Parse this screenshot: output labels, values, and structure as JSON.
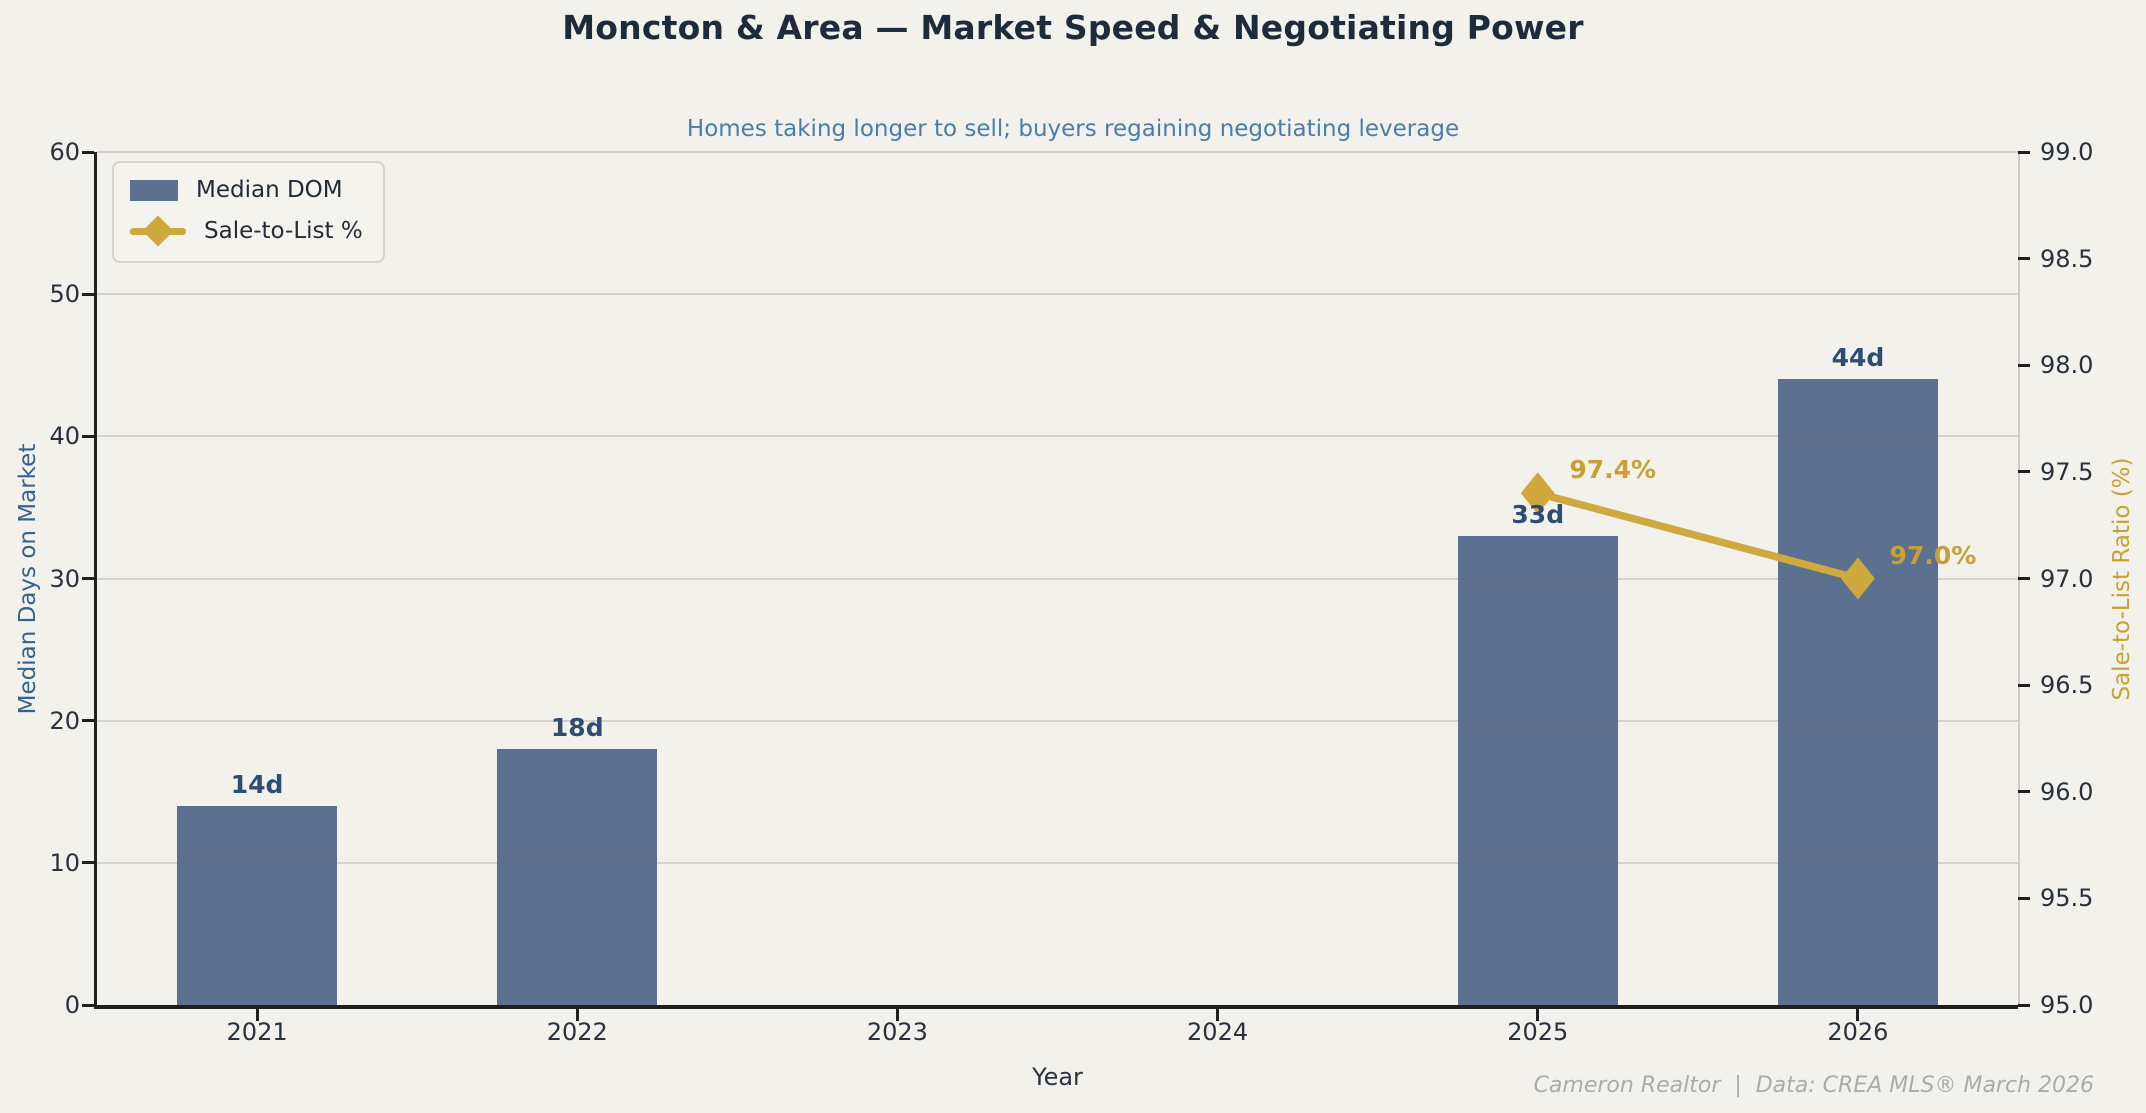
{
  "chart_data": {
    "type": "bar+line-combo",
    "title": "Moncton & Area — Market Speed & Negotiating Power",
    "subtitle": "Homes taking longer to sell; buyers regaining negotiating leverage",
    "xlabel": "Year",
    "categories": [
      "2021",
      "2022",
      "2023",
      "2024",
      "2025",
      "2026"
    ],
    "left_axis": {
      "label": "Median Days on Market",
      "lim": [
        0,
        60
      ],
      "ticks": [
        "0",
        "10",
        "20",
        "30",
        "40",
        "50",
        "60"
      ]
    },
    "right_axis": {
      "label": "Sale-to-List Ratio (%)",
      "lim": [
        95.0,
        99.0
      ],
      "ticks": [
        "95.0",
        "95.5",
        "96.0",
        "96.5",
        "97.0",
        "97.5",
        "98.0",
        "98.5",
        "99.0"
      ]
    },
    "series": [
      {
        "name": "Median DOM",
        "type": "bar",
        "axis": "left",
        "color": "#5c7190",
        "values": [
          14,
          18,
          null,
          null,
          33,
          44
        ],
        "point_labels": [
          "14d",
          "18d",
          null,
          null,
          "33d",
          "44d"
        ]
      },
      {
        "name": "Sale-to-List %",
        "type": "line",
        "axis": "right",
        "color": "#cda93e",
        "values": [
          null,
          null,
          null,
          null,
          97.4,
          97.0
        ],
        "point_labels": [
          null,
          null,
          null,
          null,
          "97.4%",
          "97.0%"
        ]
      }
    ],
    "grid": true,
    "legend_position": "top-left",
    "footer": "Cameron Realtor  |  Data: CREA MLS® March 2026"
  },
  "colors": {
    "background": "#f2f1ec",
    "title_text": "#1e2b3a",
    "subtitle_text": "#4a7dab",
    "tick_text": "#28323f",
    "left_axis_label": "#35638f",
    "right_axis_label": "#c7a234",
    "bar_value_label": "#2e4d72",
    "line_value_label": "#c7a133",
    "gridline": "rgba(110,102,88,0.22)",
    "spine_dark": "#1f1f1f",
    "spine_light": "#cfc9c0",
    "footer_text": "#ababab"
  }
}
